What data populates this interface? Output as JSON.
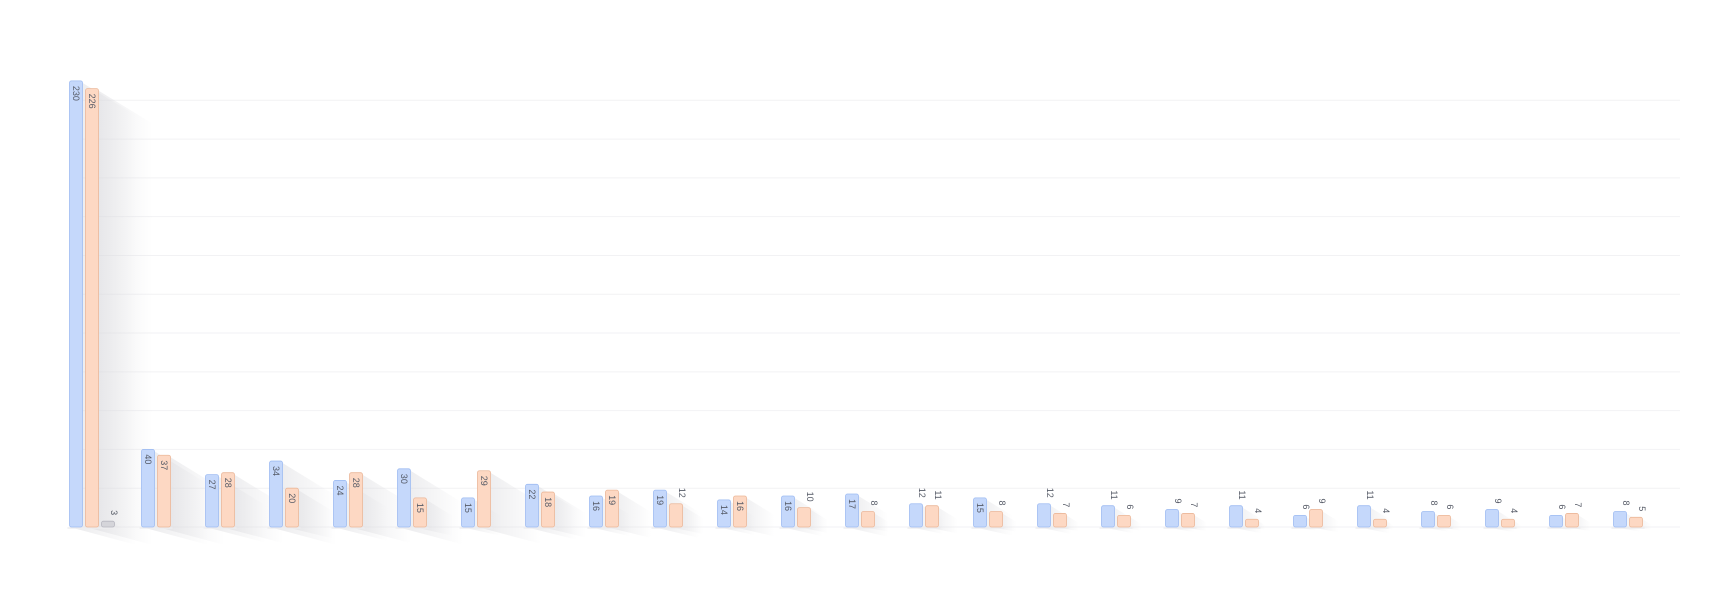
{
  "chart_data": {
    "type": "bar",
    "title": "",
    "xlabel": "",
    "ylabel": "",
    "ylim": [
      0,
      232
    ],
    "grid": true,
    "legend": "none",
    "categories": [
      "",
      "",
      "",
      "",
      "",
      "",
      "",
      "",
      "",
      "",
      "",
      "",
      "",
      "",
      "",
      "",
      "",
      "",
      "",
      "",
      "",
      "",
      "",
      "",
      ""
    ],
    "series": [
      {
        "values": [
          230,
          40,
          27,
          34,
          24,
          30,
          15,
          22,
          16,
          19,
          14,
          16,
          17,
          12,
          15,
          12,
          11,
          9,
          11,
          6,
          11,
          8,
          9,
          6,
          8
        ],
        "labels": [
          "230",
          "40",
          "27",
          "34",
          "24",
          "30",
          "15",
          "22",
          "16",
          "19",
          "14",
          "16",
          "17",
          "12",
          "15",
          "12",
          "11",
          "9",
          "11",
          "6",
          "11",
          "8",
          "9",
          "6",
          "8"
        ]
      },
      {
        "values": [
          226,
          37,
          28,
          20,
          28,
          15,
          29,
          18,
          19,
          12,
          16,
          10,
          8,
          11,
          8,
          7,
          6,
          7,
          4,
          9,
          4,
          6,
          4,
          7,
          5
        ],
        "labels": [
          "226",
          "37",
          "28",
          "20",
          "28",
          "15",
          "29",
          "18",
          "19",
          "12",
          "16",
          "10",
          "8",
          "11",
          "8",
          "7",
          "6",
          "7",
          "4",
          "9",
          "4",
          "6",
          "4",
          "7",
          "5"
        ]
      },
      {
        "values": [
          3,
          null,
          null,
          null,
          null,
          null,
          null,
          null,
          null,
          null,
          null,
          null,
          null,
          null,
          null,
          null,
          null,
          null,
          null,
          null,
          null,
          null,
          null,
          null,
          null
        ],
        "labels": [
          "3",
          "",
          "",
          "",
          "",
          "",
          "",
          "",
          "",
          "",
          "",
          "",
          "",
          "",
          "",
          "",
          "",
          "",
          "",
          "",
          "",
          "",
          "",
          "",
          ""
        ]
      }
    ]
  },
  "colors": {
    "series": [
      "#c5d8fb",
      "#fdd8c3",
      "#d5d5da"
    ],
    "series_stroke": [
      "#9fbcf2",
      "#ebb799",
      "#b7b7c0"
    ],
    "grid": "#f2f2f4",
    "label": "#555a66"
  }
}
